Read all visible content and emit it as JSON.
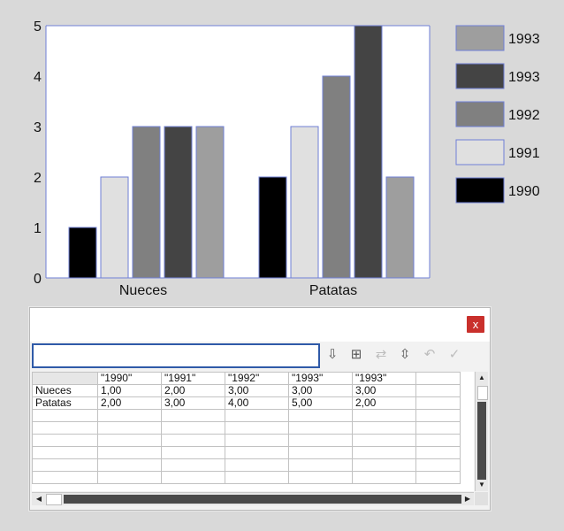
{
  "chart_data": {
    "type": "bar",
    "categories": [
      "Nueces",
      "Patatas"
    ],
    "series": [
      {
        "name": "1990",
        "values": [
          1,
          2
        ],
        "color": "#000000"
      },
      {
        "name": "1991",
        "values": [
          2,
          3
        ],
        "color": "#e0e0e0"
      },
      {
        "name": "1992",
        "values": [
          3,
          4
        ],
        "color": "#808080"
      },
      {
        "name": "1993",
        "values": [
          3,
          5
        ],
        "color": "#444444"
      },
      {
        "name": "1993",
        "values": [
          3,
          2
        ],
        "color": "#9e9e9e"
      }
    ],
    "ylim": [
      0,
      5
    ],
    "yticks": [
      "0",
      "1",
      "2",
      "3",
      "4",
      "5"
    ],
    "legend": [
      {
        "label": "1993",
        "color": "#9e9e9e"
      },
      {
        "label": "1993",
        "color": "#444444"
      },
      {
        "label": "1992",
        "color": "#808080"
      },
      {
        "label": "1991",
        "color": "#e0e0e0"
      },
      {
        "label": "1990",
        "color": "#000000"
      }
    ],
    "legend_position": "right",
    "title": "",
    "xlabel": "",
    "ylabel": ""
  },
  "dialog": {
    "close_label": "x",
    "cell_input_value": "",
    "toolbar": [
      {
        "name": "import-data-icon",
        "glyph": "⇩",
        "enabled": true
      },
      {
        "name": "transpose-icon",
        "glyph": "⊞",
        "enabled": true
      },
      {
        "name": "switch-xy-icon",
        "glyph": "⇄",
        "enabled": false
      },
      {
        "name": "cell-style-icon",
        "glyph": "⇳",
        "enabled": true
      },
      {
        "name": "revert-icon",
        "glyph": "↶",
        "enabled": false
      },
      {
        "name": "apply-icon",
        "glyph": "✓",
        "enabled": false
      }
    ],
    "grid": {
      "headers": [
        "",
        "\"1990\"",
        "\"1991\"",
        "\"1992\"",
        "\"1993\"",
        "\"1993\"",
        ""
      ],
      "rows": [
        [
          "Nueces",
          "1,00",
          "2,00",
          "3,00",
          "3,00",
          "3,00",
          ""
        ],
        [
          "Patatas",
          "2,00",
          "3,00",
          "4,00",
          "5,00",
          "2,00",
          ""
        ],
        [
          "",
          "",
          "",
          "",
          "",
          "",
          ""
        ],
        [
          "",
          "",
          "",
          "",
          "",
          "",
          ""
        ],
        [
          "",
          "",
          "",
          "",
          "",
          "",
          ""
        ],
        [
          "",
          "",
          "",
          "",
          "",
          "",
          ""
        ],
        [
          "",
          "",
          "",
          "",
          "",
          "",
          ""
        ],
        [
          "",
          "",
          "",
          "",
          "",
          "",
          ""
        ]
      ]
    }
  }
}
